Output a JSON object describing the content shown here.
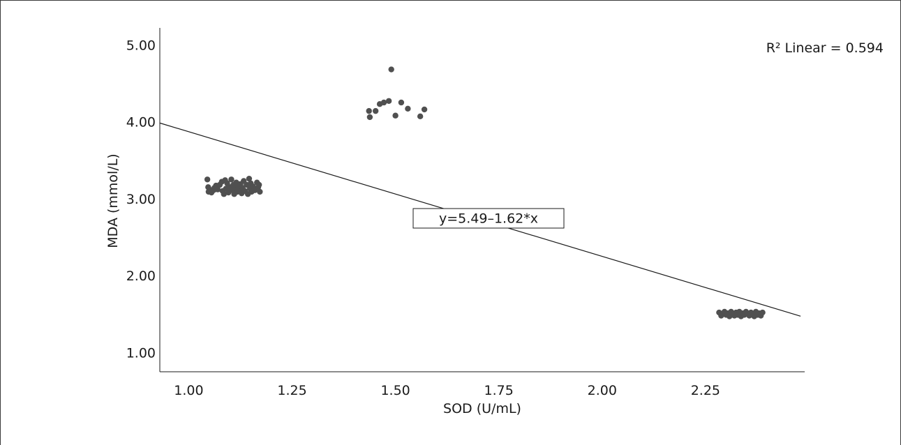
{
  "chart_data": {
    "type": "scatter",
    "xlabel": "SOD (U/mL)",
    "ylabel": "MDA (mmol/L)",
    "xlim": [
      0.93,
      2.49
    ],
    "ylim": [
      0.75,
      5.22
    ],
    "xticks": [
      1.0,
      1.25,
      1.5,
      1.75,
      2.0,
      2.25
    ],
    "xtick_labels": [
      "1.00",
      "1.25",
      "1.50",
      "1.75",
      "2.00",
      "2.25"
    ],
    "yticks": [
      1.0,
      2.0,
      3.0,
      4.0,
      5.0
    ],
    "ytick_labels": [
      "1.00",
      "2.00",
      "3.00",
      "4.00",
      "5.00"
    ],
    "grid": false,
    "r2_label": "R² Linear = 0.594",
    "fit": {
      "equation_label": "y=5.49–1.62*x",
      "intercept": 5.49,
      "slope": -1.62,
      "x_range": [
        0.93,
        2.48
      ]
    },
    "marker_color": "#505050",
    "line_color": "#1a1a1a",
    "points": [
      [
        1.045,
        3.25
      ],
      [
        1.047,
        3.15
      ],
      [
        1.048,
        3.09
      ],
      [
        1.05,
        3.12
      ],
      [
        1.055,
        3.08
      ],
      [
        1.06,
        3.11
      ],
      [
        1.062,
        3.14
      ],
      [
        1.066,
        3.17
      ],
      [
        1.07,
        3.12
      ],
      [
        1.075,
        3.18
      ],
      [
        1.08,
        3.22
      ],
      [
        1.082,
        3.1
      ],
      [
        1.085,
        3.06
      ],
      [
        1.088,
        3.24
      ],
      [
        1.09,
        3.13
      ],
      [
        1.093,
        3.2
      ],
      [
        1.096,
        3.08
      ],
      [
        1.1,
        3.15
      ],
      [
        1.103,
        3.25
      ],
      [
        1.105,
        3.11
      ],
      [
        1.108,
        3.18
      ],
      [
        1.11,
        3.06
      ],
      [
        1.112,
        3.14
      ],
      [
        1.115,
        3.21
      ],
      [
        1.118,
        3.09
      ],
      [
        1.12,
        3.16
      ],
      [
        1.123,
        3.12
      ],
      [
        1.125,
        3.19
      ],
      [
        1.128,
        3.07
      ],
      [
        1.13,
        3.14
      ],
      [
        1.133,
        3.23
      ],
      [
        1.136,
        3.1
      ],
      [
        1.14,
        3.18
      ],
      [
        1.143,
        3.06
      ],
      [
        1.146,
        3.26
      ],
      [
        1.148,
        3.13
      ],
      [
        1.15,
        3.2
      ],
      [
        1.152,
        3.09
      ],
      [
        1.155,
        3.16
      ],
      [
        1.16,
        3.11
      ],
      [
        1.165,
        3.21
      ],
      [
        1.168,
        3.15
      ],
      [
        1.17,
        3.18
      ],
      [
        1.172,
        3.09
      ],
      [
        1.436,
        4.14
      ],
      [
        1.438,
        4.06
      ],
      [
        1.452,
        4.14
      ],
      [
        1.462,
        4.23
      ],
      [
        1.472,
        4.25
      ],
      [
        1.484,
        4.27
      ],
      [
        1.49,
        4.68
      ],
      [
        1.5,
        4.08
      ],
      [
        1.514,
        4.25
      ],
      [
        1.53,
        4.17
      ],
      [
        1.56,
        4.07
      ],
      [
        1.57,
        4.16
      ],
      [
        2.283,
        1.52
      ],
      [
        2.288,
        1.48
      ],
      [
        2.292,
        1.5
      ],
      [
        2.296,
        1.53
      ],
      [
        2.3,
        1.49
      ],
      [
        2.304,
        1.51
      ],
      [
        2.308,
        1.47
      ],
      [
        2.312,
        1.53
      ],
      [
        2.316,
        1.5
      ],
      [
        2.32,
        1.48
      ],
      [
        2.324,
        1.52
      ],
      [
        2.328,
        1.49
      ],
      [
        2.332,
        1.53
      ],
      [
        2.336,
        1.47
      ],
      [
        2.34,
        1.51
      ],
      [
        2.344,
        1.49
      ],
      [
        2.348,
        1.53
      ],
      [
        2.352,
        1.5
      ],
      [
        2.356,
        1.48
      ],
      [
        2.36,
        1.52
      ],
      [
        2.364,
        1.5
      ],
      [
        2.368,
        1.47
      ],
      [
        2.372,
        1.53
      ],
      [
        2.376,
        1.49
      ],
      [
        2.38,
        1.51
      ],
      [
        2.384,
        1.48
      ],
      [
        2.388,
        1.52
      ]
    ]
  }
}
